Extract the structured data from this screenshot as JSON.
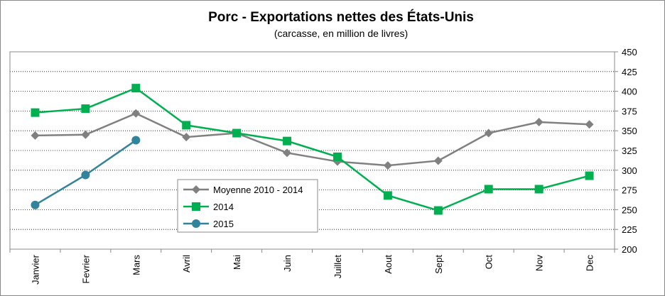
{
  "chart_data": {
    "type": "line",
    "title": "Porc - Exportations nettes des États-Unis",
    "subtitle": "(carcasse, en million de livres)",
    "categories": [
      "Janvier",
      "Fevrier",
      "Mars",
      "Avril",
      "Mai",
      "Juin",
      "Juillet",
      "Aout",
      "Sept",
      "Oct",
      "Nov",
      "Dec"
    ],
    "series": [
      {
        "name": "Moyenne 2010 - 2014",
        "color": "#808080",
        "marker": "diamond",
        "values": [
          344,
          345,
          372,
          342,
          347,
          322,
          311,
          306,
          312,
          347,
          361,
          358
        ]
      },
      {
        "name": "2014",
        "color": "#00b050",
        "marker": "square",
        "values": [
          373,
          378,
          404,
          357,
          347,
          337,
          317,
          268,
          249,
          276,
          276,
          293
        ]
      },
      {
        "name": "2015",
        "color": "#31849b",
        "marker": "circle",
        "values": [
          256,
          294,
          338,
          null,
          null,
          null,
          null,
          null,
          null,
          null,
          null,
          null
        ]
      }
    ],
    "ylim": [
      200,
      450
    ],
    "yticks": [
      200,
      225,
      250,
      275,
      300,
      325,
      350,
      375,
      400,
      425,
      450
    ],
    "grid": true,
    "y_axis_side": "right"
  }
}
